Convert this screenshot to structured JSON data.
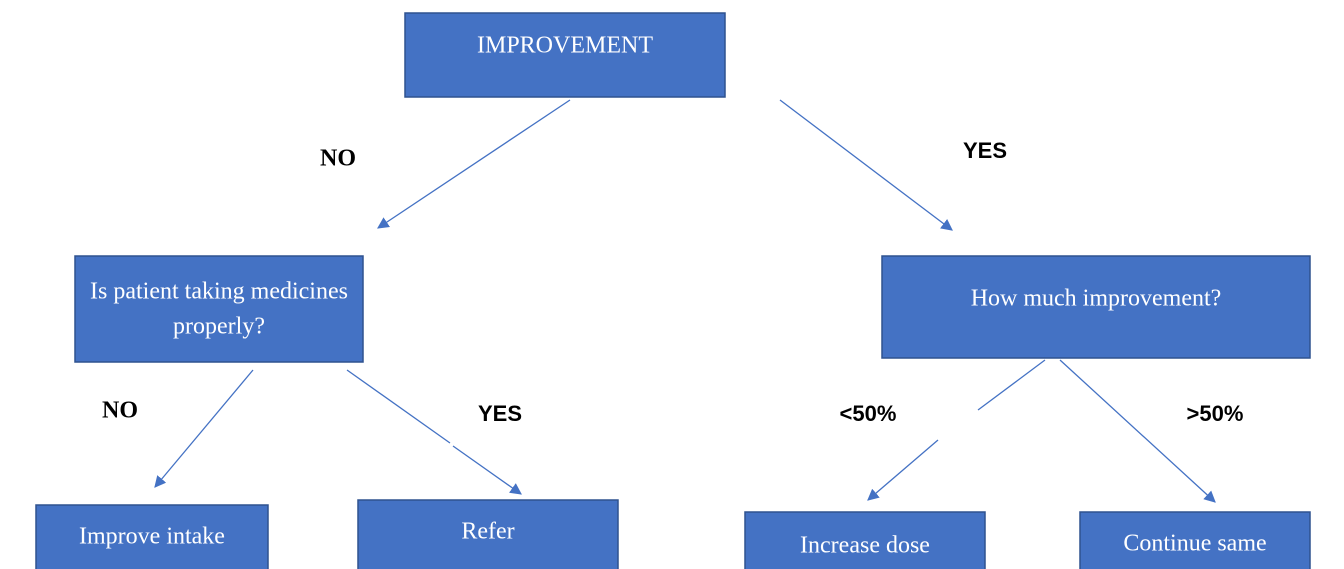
{
  "nodes": [
    {
      "label": "IMPROVEMENT"
    },
    {
      "lines": [
        "Is patient taking medicines",
        "properly?"
      ]
    },
    {
      "label": "How much improvement?"
    },
    {
      "label": "Improve intake"
    },
    {
      "label": "Refer"
    },
    {
      "label": "Increase dose"
    },
    {
      "label": "Continue same"
    }
  ],
  "edges": [
    {
      "label": "NO"
    },
    {
      "label": "YES"
    },
    {
      "label": "NO"
    },
    {
      "label": "YES"
    },
    {
      "label": "<50%"
    },
    {
      "label": ">50%"
    }
  ]
}
